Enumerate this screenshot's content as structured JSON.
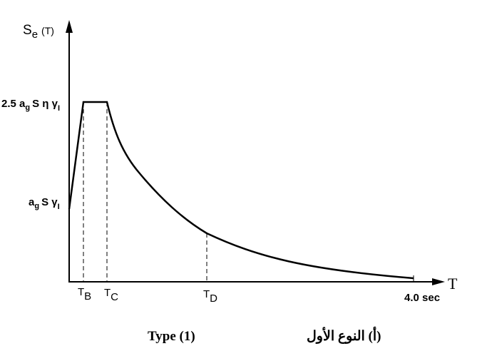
{
  "y_axis_label": {
    "symbol": "S",
    "subscript": "e",
    "argument": "(T)"
  },
  "levels": [
    {
      "coefficient": "2.5 a",
      "subscript_1": "g",
      "middle": "S η γ",
      "subscript_2": "I"
    },
    {
      "coefficient": "a",
      "subscript_1": "g",
      "middle": "S γ",
      "subscript_2": "I"
    }
  ],
  "periods": [
    {
      "symbol": "T",
      "subscript": "B"
    },
    {
      "symbol": "T",
      "subscript": "C"
    },
    {
      "symbol": "T",
      "subscript": "D"
    }
  ],
  "x_end_label": "4.0 sec",
  "x_axis_label": "T",
  "caption": {
    "english": "Type (1)",
    "arabic": "(أ) النوع الأول"
  }
}
